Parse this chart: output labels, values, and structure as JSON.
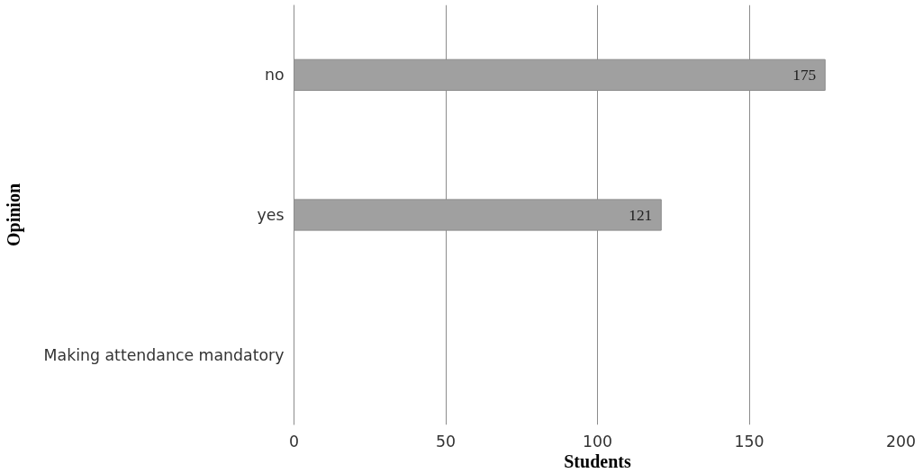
{
  "chart_data": {
    "type": "bar",
    "orientation": "horizontal",
    "categories": [
      "no",
      "yes",
      "Making attendance mandatory"
    ],
    "values": [
      175,
      121,
      null
    ],
    "color": "#a0a0a0",
    "xlabel": "Students",
    "ylabel": "Opinion",
    "xlim": [
      0,
      200
    ],
    "xticks": [
      0,
      50,
      100,
      150,
      200
    ],
    "grid": "x",
    "data_labels": true
  }
}
